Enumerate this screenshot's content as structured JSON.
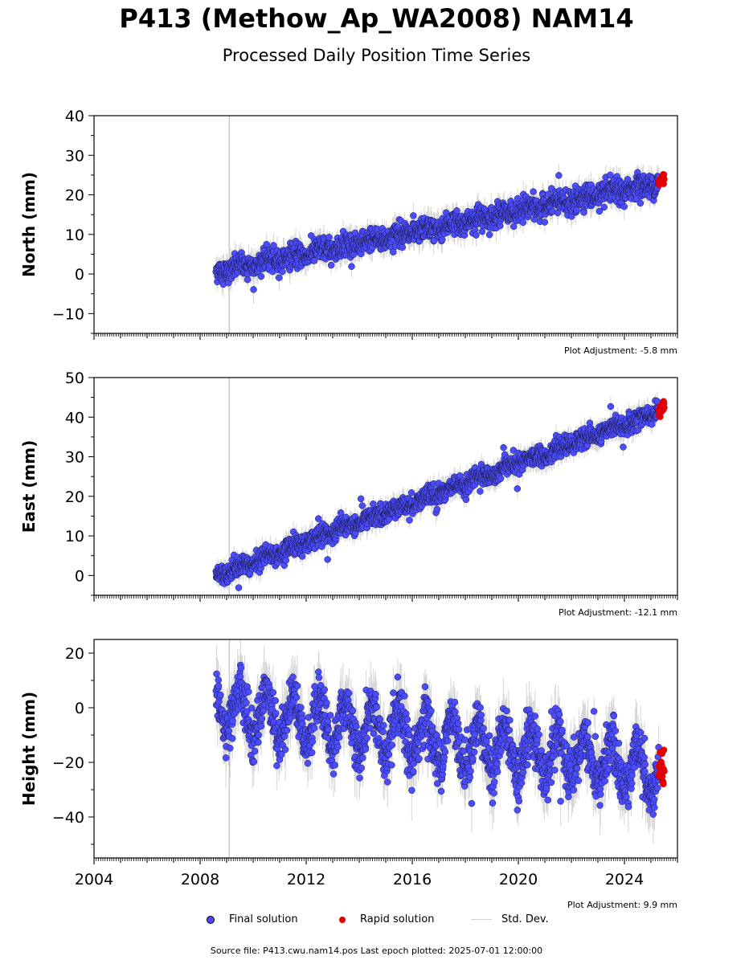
{
  "title": "P413 (Methow_Ap_WA2008) NAM14",
  "subtitle": "Processed Daily Position Time Series",
  "footer": "Source file: P413.cwu.nam14.pos  Last epoch plotted: 2025-07-01 12:00:00",
  "legend": {
    "final": "Final solution",
    "rapid": "Rapid solution",
    "stddev": "Std. Dev."
  },
  "colors": {
    "final": "#4b4bff",
    "rapid": "#e00000",
    "stddev": "#d0d0d0",
    "vline": "#cccccc"
  },
  "chart_data": [
    {
      "type": "scatter",
      "ylabel": "North (mm)",
      "adjustment": "Plot Adjustment: -5.8 mm",
      "xlim": [
        2004.0,
        2026.0
      ],
      "ylim": [
        -15,
        40
      ],
      "yticks": [
        -10,
        0,
        10,
        20,
        30,
        40
      ],
      "vline_x": 2009.1,
      "series": [
        {
          "solution": "final",
          "x_start": 2008.6,
          "x_end": 2025.3,
          "start": 0.5,
          "end": 23.0,
          "noise": 1.4,
          "seasonal": 0.6
        },
        {
          "solution": "rapid",
          "x_start": 2025.3,
          "x_end": 2025.5,
          "start": 23.0,
          "end": 24.5,
          "noise": 0.8,
          "seasonal": 0
        }
      ]
    },
    {
      "type": "scatter",
      "ylabel": "East (mm)",
      "adjustment": "Plot Adjustment: -12.1 mm",
      "xlim": [
        2004.0,
        2026.0
      ],
      "ylim": [
        -5,
        50
      ],
      "yticks": [
        0,
        10,
        20,
        30,
        40,
        50
      ],
      "vline_x": 2009.1,
      "series": [
        {
          "solution": "final",
          "x_start": 2008.6,
          "x_end": 2025.3,
          "start": 0.0,
          "end": 41.5,
          "noise": 1.2,
          "seasonal": 0.5
        },
        {
          "solution": "rapid",
          "x_start": 2025.3,
          "x_end": 2025.5,
          "start": 41.5,
          "end": 42.8,
          "noise": 0.7,
          "seasonal": 0
        }
      ]
    },
    {
      "type": "scatter",
      "ylabel": "Height (mm)",
      "adjustment": "Plot Adjustment: 9.9 mm",
      "xlim": [
        2004.0,
        2026.0
      ],
      "ylim": [
        -55,
        25
      ],
      "yticks": [
        -40,
        -20,
        0,
        20
      ],
      "xticks": [
        2004,
        2008,
        2012,
        2016,
        2020,
        2024
      ],
      "vline_x": 2009.1,
      "series": [
        {
          "solution": "final",
          "x_start": 2008.6,
          "x_end": 2025.3,
          "start": 0.0,
          "end": -23.0,
          "noise": 4.5,
          "seasonal": 8.5
        },
        {
          "solution": "rapid",
          "x_start": 2025.3,
          "x_end": 2025.5,
          "start": -22.0,
          "end": -23.0,
          "noise": 3.5,
          "seasonal": 0
        }
      ]
    }
  ]
}
